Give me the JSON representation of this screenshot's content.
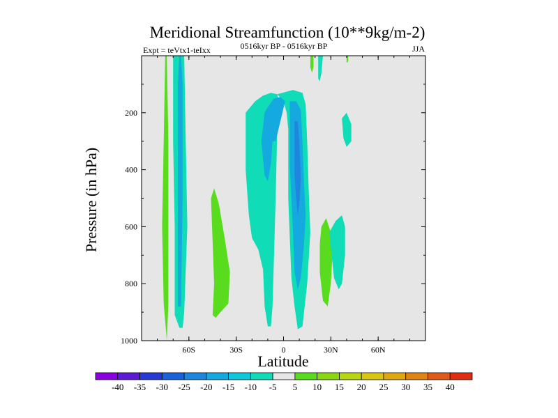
{
  "chart_data": {
    "type": "filled-contour",
    "title": "Meridional Streamfunction (10**9kg/m-2)",
    "subtitle_left": "Expt = teVtx1-teIxx",
    "subtitle_center": "0516kyr BP - 0516kyr BP",
    "subtitle_right": "JJA",
    "xlabel": "Latitude",
    "ylabel": "Pressure (in hPa)",
    "xlim": [
      -90,
      90
    ],
    "ylim": [
      1000,
      0
    ],
    "x_ticks": [
      {
        "value": -60,
        "label": "60S"
      },
      {
        "value": -30,
        "label": "30S"
      },
      {
        "value": 0,
        "label": "0"
      },
      {
        "value": 30,
        "label": "30N"
      },
      {
        "value": 60,
        "label": "60N"
      }
    ],
    "y_ticks": [
      {
        "value": 200,
        "label": "200"
      },
      {
        "value": 400,
        "label": "400"
      },
      {
        "value": 600,
        "label": "600"
      },
      {
        "value": 800,
        "label": "800"
      },
      {
        "value": 1000,
        "label": "1000"
      }
    ],
    "background_color": "#e6e6e6",
    "contour_levels": [
      -40,
      -35,
      -30,
      -25,
      -20,
      -15,
      -10,
      -5,
      5,
      10,
      15,
      20,
      25,
      30,
      35,
      40
    ],
    "colorbar_colors": [
      "#8a00e0",
      "#5a1ad6",
      "#2638d6",
      "#1a62da",
      "#1e86df",
      "#14a9df",
      "#10c8dc",
      "#10dcb8",
      "#e6e6e6",
      "#5adc1e",
      "#8ad814",
      "#b8d614",
      "#d8c610",
      "#e0a810",
      "#e08416",
      "#e05a1a",
      "#e02c10"
    ],
    "regions": [
      {
        "value": 7,
        "color": "#5adc1e",
        "points": [
          [
            -74,
            1000
          ],
          [
            -76,
            870
          ],
          [
            -77,
            600
          ],
          [
            -76,
            300
          ],
          [
            -75,
            0
          ],
          [
            -74,
            0
          ],
          [
            -73,
            300
          ],
          [
            -73,
            600
          ],
          [
            -73,
            870
          ]
        ]
      },
      {
        "value": -7,
        "color": "#10dcb8",
        "points": [
          [
            -69,
            910
          ],
          [
            -69,
            600
          ],
          [
            -70,
            300
          ],
          [
            -70,
            0
          ],
          [
            -63,
            0
          ],
          [
            -62,
            300
          ],
          [
            -61,
            600
          ],
          [
            -63,
            900
          ],
          [
            -64,
            955
          ],
          [
            -66,
            955
          ]
        ]
      },
      {
        "value": -12,
        "color": "#14a9df",
        "points": [
          [
            -67,
            880
          ],
          [
            -67,
            500
          ],
          [
            -67,
            100
          ],
          [
            -66,
            0
          ],
          [
            -65,
            0
          ],
          [
            -64,
            100
          ],
          [
            -64,
            500
          ],
          [
            -65,
            880
          ]
        ]
      },
      {
        "value": 7,
        "color": "#5adc1e",
        "points": [
          [
            -45,
            910
          ],
          [
            -44,
            800
          ],
          [
            -45,
            650
          ],
          [
            -46,
            500
          ],
          [
            -44,
            465
          ],
          [
            -41,
            520
          ],
          [
            -37,
            650
          ],
          [
            -34,
            760
          ],
          [
            -35,
            870
          ],
          [
            -40,
            900
          ],
          [
            -43,
            920
          ]
        ]
      },
      {
        "value": -7,
        "color": "#10dcb8",
        "points": [
          [
            -24,
            200
          ],
          [
            -18,
            160
          ],
          [
            -13,
            140
          ],
          [
            -8,
            130
          ],
          [
            -4,
            135
          ],
          [
            -1,
            200
          ],
          [
            -4,
            260
          ],
          [
            -5,
            500
          ],
          [
            -6,
            700
          ],
          [
            -7,
            880
          ],
          [
            -8,
            950
          ],
          [
            -10,
            950
          ],
          [
            -12,
            880
          ],
          [
            -13,
            750
          ],
          [
            -16,
            680
          ],
          [
            -20,
            640
          ],
          [
            -22,
            560
          ],
          [
            -24,
            400
          ]
        ]
      },
      {
        "value": -7,
        "color": "#10dcb8",
        "points": [
          [
            -4,
            135
          ],
          [
            6,
            120
          ],
          [
            12,
            130
          ],
          [
            14,
            170
          ],
          [
            15,
            300
          ],
          [
            16,
            480
          ],
          [
            17,
            620
          ],
          [
            15,
            800
          ],
          [
            12,
            950
          ],
          [
            9,
            960
          ],
          [
            7,
            880
          ],
          [
            5,
            780
          ],
          [
            4,
            640
          ],
          [
            3,
            500
          ],
          [
            3,
            260
          ],
          [
            2,
            200
          ],
          [
            0,
            160
          ]
        ]
      },
      {
        "value": -12,
        "color": "#14a9df",
        "points": [
          [
            -12,
            200
          ],
          [
            -10,
            180
          ],
          [
            -6,
            150
          ],
          [
            -2,
            145
          ],
          [
            1,
            160
          ],
          [
            -2,
            230
          ],
          [
            -5,
            300
          ],
          [
            -7,
            300
          ],
          [
            -8,
            380
          ],
          [
            -10,
            440
          ],
          [
            -12,
            420
          ],
          [
            -13,
            360
          ],
          [
            -14,
            300
          ]
        ]
      },
      {
        "value": -12,
        "color": "#14a9df",
        "points": [
          [
            4,
            160
          ],
          [
            8,
            160
          ],
          [
            11,
            190
          ],
          [
            12,
            300
          ],
          [
            13,
            450
          ],
          [
            14,
            560
          ],
          [
            13,
            660
          ],
          [
            11,
            780
          ],
          [
            9,
            820
          ],
          [
            7,
            760
          ],
          [
            6,
            620
          ],
          [
            5,
            500
          ],
          [
            4,
            380
          ],
          [
            4,
            260
          ]
        ]
      },
      {
        "value": -20,
        "color": "#1e86df",
        "points": [
          [
            7,
            230
          ],
          [
            9,
            230
          ],
          [
            10,
            300
          ],
          [
            11,
            430
          ],
          [
            10,
            520
          ],
          [
            9,
            560
          ],
          [
            8,
            500
          ],
          [
            7,
            420
          ],
          [
            7,
            320
          ]
        ]
      },
      {
        "value": -12,
        "color": "#14a9df",
        "points": [
          [
            -10,
            220
          ],
          [
            -8,
            210
          ],
          [
            -7,
            250
          ],
          [
            -8,
            290
          ],
          [
            -10,
            300
          ],
          [
            -11,
            260
          ]
        ]
      },
      {
        "value": 7,
        "color": "#5adc1e",
        "points": [
          [
            24,
            600
          ],
          [
            27,
            570
          ],
          [
            30,
            620
          ],
          [
            31,
            700
          ],
          [
            30,
            800
          ],
          [
            28,
            880
          ],
          [
            25,
            860
          ],
          [
            23,
            760
          ],
          [
            23,
            660
          ]
        ]
      },
      {
        "value": -7,
        "color": "#10dcb8",
        "points": [
          [
            29,
            620
          ],
          [
            33,
            580
          ],
          [
            37,
            560
          ],
          [
            39,
            600
          ],
          [
            39,
            700
          ],
          [
            37,
            800
          ],
          [
            35,
            820
          ],
          [
            32,
            780
          ]
        ]
      },
      {
        "value": -7,
        "color": "#10dcb8",
        "points": [
          [
            37,
            220
          ],
          [
            40,
            200
          ],
          [
            43,
            240
          ],
          [
            43,
            300
          ],
          [
            40,
            320
          ],
          [
            38,
            290
          ]
        ]
      },
      {
        "value": -7,
        "color": "#10dcb8",
        "points": [
          [
            25,
            0
          ],
          [
            22,
            0
          ],
          [
            22,
            80
          ],
          [
            23,
            90
          ],
          [
            24,
            60
          ]
        ]
      },
      {
        "value": 7,
        "color": "#5adc1e",
        "points": [
          [
            17,
            0
          ],
          [
            19,
            0
          ],
          [
            19,
            40
          ],
          [
            18,
            60
          ],
          [
            17,
            40
          ]
        ]
      },
      {
        "value": 7,
        "color": "#5adc1e",
        "points": [
          [
            40,
            0
          ],
          [
            41,
            0
          ],
          [
            41,
            20
          ],
          [
            40,
            25
          ]
        ]
      }
    ]
  }
}
